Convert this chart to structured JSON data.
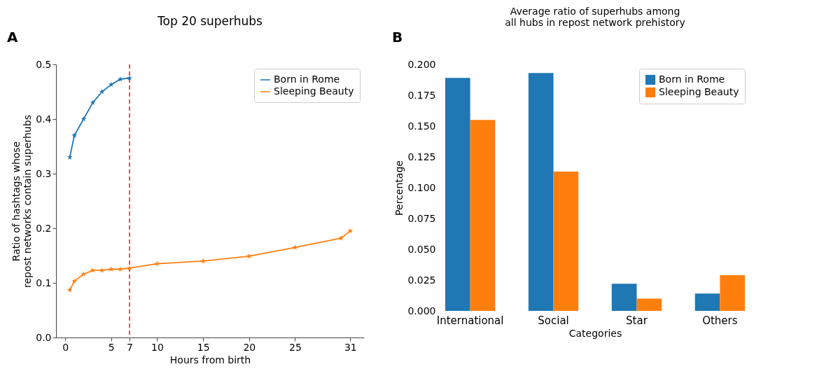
{
  "chart_data": [
    {
      "type": "line",
      "title": "Top 20 superhubs",
      "xlabel": "Hours from birth",
      "ylabel": "Ratio of hashtags whose\nrepost networks contain superhubs",
      "annotations": [
        "A"
      ],
      "marker": "star",
      "legend": "top right",
      "xlim": [
        -1,
        32.5
      ],
      "xticks": [
        0,
        5,
        7,
        10,
        15,
        20,
        25,
        31
      ],
      "ylim": [
        0,
        0.5
      ],
      "yticks": [
        {
          "value": 0,
          "label": "0.0"
        },
        {
          "value": 0.1,
          "label": "0.1"
        },
        {
          "value": 0.2,
          "label": "0.2"
        },
        {
          "value": 0.3,
          "label": "0.3"
        },
        {
          "value": 0.4,
          "label": "0.4"
        },
        {
          "value": 0.5,
          "label": "0.5"
        }
      ],
      "series": [
        {
          "name": "Born in Rome",
          "color": "#1f77b4",
          "x": [
            0.5,
            1,
            2,
            3,
            4,
            5,
            6,
            7
          ],
          "values": [
            0.33,
            0.37,
            0.4,
            0.43,
            0.45,
            0.463,
            0.473,
            0.475
          ]
        },
        {
          "name": "Sleeping Beauty",
          "color": "#ff7f0e",
          "x": [
            0.5,
            1,
            2,
            3,
            4,
            5,
            6,
            7,
            10,
            15,
            20,
            25,
            30,
            31
          ],
          "values": [
            0.087,
            0.103,
            0.116,
            0.123,
            0.123,
            0.125,
            0.125,
            0.127,
            0.135,
            0.14,
            0.149,
            0.165,
            0.182,
            0.195
          ]
        }
      ],
      "ref_lines": [
        {
          "axis": "x",
          "value": 7,
          "color": "#ee2222",
          "line_style": "dashed"
        }
      ]
    },
    {
      "type": "bar",
      "title": "Average ratio of superhubs among\nall hubs in repost network prehistory",
      "xlabel": "Categories",
      "ylabel": "Percentage",
      "annotations": [
        "B"
      ],
      "legend": "top right",
      "categories": [
        "International",
        "Social",
        "Star",
        "Others"
      ],
      "ylim": [
        0,
        0.2
      ],
      "yticks": [
        {
          "value": 0,
          "label": "0.000"
        },
        {
          "value": 0.025,
          "label": "0.025"
        },
        {
          "value": 0.05,
          "label": "0.050"
        },
        {
          "value": 0.075,
          "label": "0.075"
        },
        {
          "value": 0.1,
          "label": "0.100"
        },
        {
          "value": 0.125,
          "label": "0.125"
        },
        {
          "value": 0.15,
          "label": "0.150"
        },
        {
          "value": 0.175,
          "label": "0.175"
        },
        {
          "value": 0.2,
          "label": "0.200"
        }
      ],
      "series": [
        {
          "name": "Born in Rome",
          "color": "#1f77b4",
          "values": [
            0.189,
            0.193,
            0.022,
            0.014
          ]
        },
        {
          "name": "Sleeping Beauty",
          "color": "#ff7f0e",
          "values": [
            0.155,
            0.113,
            0.01,
            0.029
          ]
        }
      ]
    }
  ]
}
